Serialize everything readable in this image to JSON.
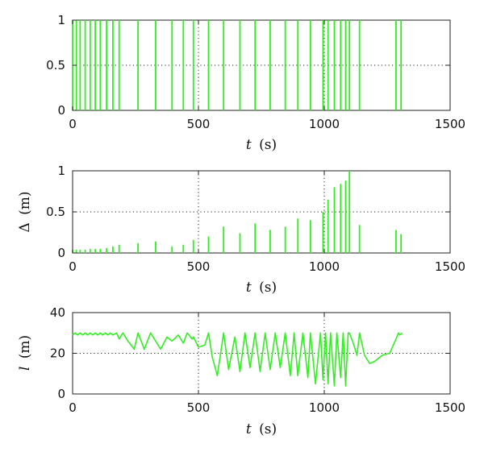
{
  "colors": {
    "series": "#33ee22",
    "axis": "#222222"
  },
  "chart_data": [
    {
      "type": "line",
      "xlabel_var": "t",
      "xlabel_unit": "(s)",
      "ylabel_var": "",
      "ylabel_unit": "",
      "xlim": [
        0,
        1500
      ],
      "ylim": [
        0,
        1
      ],
      "xticks": [
        "0",
        "500",
        "1000",
        "1500"
      ],
      "yticks": [
        "0",
        "0.5",
        "1"
      ],
      "grid": {
        "x": [
          500,
          1000
        ],
        "y": [
          0.5
        ]
      },
      "style": "impulse",
      "series": [
        {
          "x": [
            0,
            15,
            30,
            50,
            70,
            90,
            110,
            135,
            160,
            185,
            260,
            330,
            395,
            440,
            480,
            540,
            600,
            665,
            725,
            785,
            845,
            895,
            945,
            995,
            1015,
            1040,
            1065,
            1085,
            1100,
            1140,
            1285,
            1305
          ],
          "y": [
            1,
            1,
            1,
            1,
            1,
            1,
            1,
            1,
            1,
            1,
            1,
            1,
            1,
            1,
            1,
            1,
            1,
            1,
            1,
            1,
            1,
            1,
            1,
            1,
            1,
            1,
            1,
            1,
            1,
            1,
            1,
            1
          ]
        }
      ]
    },
    {
      "type": "line",
      "xlabel_var": "t",
      "xlabel_unit": "(s)",
      "ylabel_var": "Δ",
      "ylabel_unit": "(m)",
      "xlim": [
        0,
        1500
      ],
      "ylim": [
        0,
        1
      ],
      "xticks": [
        "0",
        "500",
        "1000",
        "1500"
      ],
      "yticks": [
        "0",
        "0.5",
        "1"
      ],
      "grid": {
        "x": [
          500,
          1000
        ],
        "y": [
          0.5
        ]
      },
      "style": "impulse",
      "series": [
        {
          "x": [
            0,
            15,
            30,
            50,
            70,
            90,
            110,
            135,
            160,
            185,
            260,
            330,
            395,
            440,
            480,
            540,
            600,
            665,
            725,
            785,
            845,
            895,
            945,
            995,
            1015,
            1040,
            1065,
            1085,
            1100,
            1140,
            1285,
            1305
          ],
          "y": [
            0.04,
            0.04,
            0.04,
            0.04,
            0.05,
            0.05,
            0.05,
            0.06,
            0.08,
            0.1,
            0.12,
            0.14,
            0.08,
            0.1,
            0.16,
            0.2,
            0.32,
            0.24,
            0.36,
            0.28,
            0.32,
            0.42,
            0.4,
            0.5,
            0.65,
            0.8,
            0.84,
            0.88,
            1.0,
            0.34,
            0.28,
            0.23
          ]
        }
      ]
    },
    {
      "type": "line",
      "xlabel_var": "t",
      "xlabel_unit": "(s)",
      "ylabel_var": "l",
      "ylabel_unit": "(m)",
      "xlim": [
        0,
        1500
      ],
      "ylim": [
        0,
        40
      ],
      "xticks": [
        "0",
        "500",
        "1000",
        "1500"
      ],
      "yticks": [
        "0",
        "20",
        "40"
      ],
      "grid": {
        "x": [
          500,
          1000
        ],
        "y": [
          20
        ]
      },
      "style": "line",
      "series": [
        {
          "x": [
            0,
            10,
            20,
            30,
            40,
            50,
            60,
            70,
            80,
            90,
            100,
            110,
            120,
            130,
            140,
            150,
            160,
            175,
            185,
            200,
            220,
            245,
            260,
            285,
            310,
            330,
            350,
            375,
            395,
            420,
            440,
            455,
            475,
            480,
            500,
            525,
            540,
            555,
            575,
            600,
            620,
            645,
            665,
            685,
            705,
            725,
            745,
            765,
            785,
            805,
            825,
            845,
            865,
            880,
            895,
            915,
            935,
            945,
            965,
            985,
            995,
            1005,
            1015,
            1025,
            1040,
            1050,
            1065,
            1075,
            1085,
            1095,
            1100,
            1115,
            1130,
            1140,
            1160,
            1180,
            1200,
            1230,
            1260,
            1285,
            1295,
            1300,
            1310
          ],
          "y": [
            29,
            30,
            29,
            30,
            29,
            30,
            29,
            30,
            29,
            30,
            29,
            30,
            29,
            30,
            29,
            30,
            29,
            30,
            27,
            30,
            26,
            22,
            30,
            22,
            30,
            26,
            22,
            28,
            26,
            29,
            25,
            30,
            27,
            28,
            23,
            24,
            30,
            18,
            9,
            30,
            12,
            28,
            11,
            30,
            13,
            30,
            11,
            30,
            12,
            30,
            13,
            30,
            9,
            30,
            9,
            30,
            8,
            30,
            5,
            30,
            7,
            30,
            5,
            30,
            4,
            30,
            8,
            30,
            4,
            30,
            30,
            25,
            19,
            30,
            19,
            15,
            16,
            19,
            20,
            27,
            30,
            29,
            30
          ]
        }
      ]
    }
  ]
}
